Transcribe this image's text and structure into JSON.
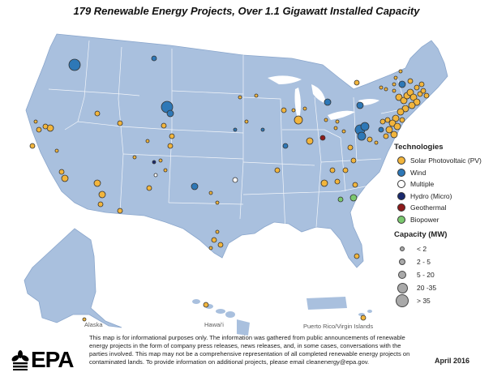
{
  "title": "179 Renewable Energy Projects, Over 1.1 Gigawatt Installed Capacity",
  "legend": {
    "technologies_title": "Technologies",
    "technologies": [
      {
        "label": "Solar Photovoltaic (PV)",
        "color": "#f2b53c",
        "icon": "solar-pv-dot"
      },
      {
        "label": "Wind",
        "color": "#2e78b7",
        "icon": "wind-dot"
      },
      {
        "label": "Multiple",
        "color": "#ffffff",
        "icon": "multiple-dot"
      },
      {
        "label": "Hydro (Micro)",
        "color": "#1a2a6e",
        "icon": "hydro-dot"
      },
      {
        "label": "Geothermal",
        "color": "#8e1b1b",
        "icon": "geothermal-dot"
      },
      {
        "label": "Biopower",
        "color": "#7bc96f",
        "icon": "biopower-dot"
      }
    ],
    "capacity_title": "Capacity (MW)",
    "capacity_classes": [
      {
        "label": "< 2"
      },
      {
        "label": "2 - 5"
      },
      {
        "label": "5 - 20"
      },
      {
        "label": "20 -35"
      },
      {
        "label": "> 35"
      }
    ]
  },
  "region_labels": {
    "alaska": "Alaska",
    "hawaii": "Hawai'i",
    "puerto_rico": "Puerto Rico/Virgin Islands"
  },
  "logo_text": "EPA",
  "disclaimer": "This map is for informational purposes only. The information was gathered from public announcements of renewable energy projects in the form of company press releases, news releases, and, in some cases, conversations with the parties involved. This map may not be a comprehensive representation of all completed renewable energy projects on contaminated lands. To provide information on additional projects, please email cleanenergy@epa.gov.",
  "date": "April 2016",
  "colors": {
    "land": "#a9c0de",
    "border": "#ffffff",
    "solar": "#f2b53c",
    "wind": "#2e78b7",
    "hydro": "#1a2a6e",
    "geothermal": "#8e1b1b",
    "biopower": "#7bc96f"
  }
}
